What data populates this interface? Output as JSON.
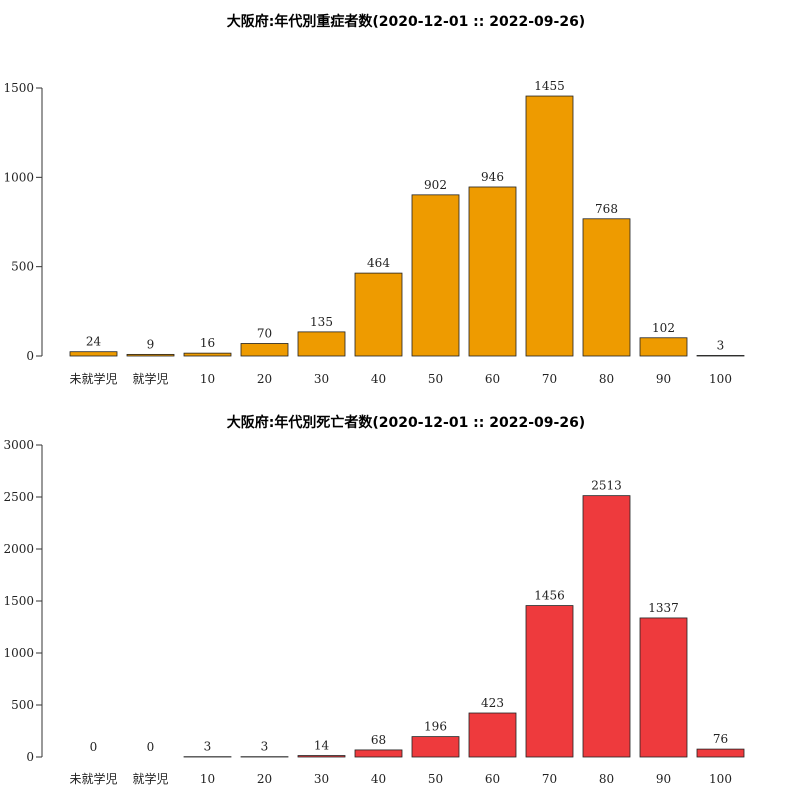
{
  "chart_data": [
    {
      "type": "bar",
      "title": "大阪府:年代別重症者数(2020-12-01 :: 2022-09-26)",
      "categories": [
        "未就学児",
        "就学児",
        "10",
        "20",
        "30",
        "40",
        "50",
        "60",
        "70",
        "80",
        "90",
        "100"
      ],
      "values": [
        24,
        9,
        16,
        70,
        135,
        464,
        902,
        946,
        1455,
        768,
        102,
        3
      ],
      "ylim": [
        0,
        1500
      ],
      "yticks": [
        0,
        500,
        1000,
        1500
      ],
      "bar_color": "#EE9B00",
      "grid": false
    },
    {
      "type": "bar",
      "title": "大阪府:年代別死亡者数(2020-12-01 :: 2022-09-26)",
      "categories": [
        "未就学児",
        "就学児",
        "10",
        "20",
        "30",
        "40",
        "50",
        "60",
        "70",
        "80",
        "90",
        "100"
      ],
      "values": [
        0,
        0,
        3,
        3,
        14,
        68,
        196,
        423,
        1456,
        2513,
        1337,
        76
      ],
      "ylim": [
        0,
        3000
      ],
      "yticks": [
        0,
        500,
        1000,
        1500,
        2000,
        2500,
        3000
      ],
      "bar_color": "#EE3A3D",
      "grid": false
    }
  ]
}
